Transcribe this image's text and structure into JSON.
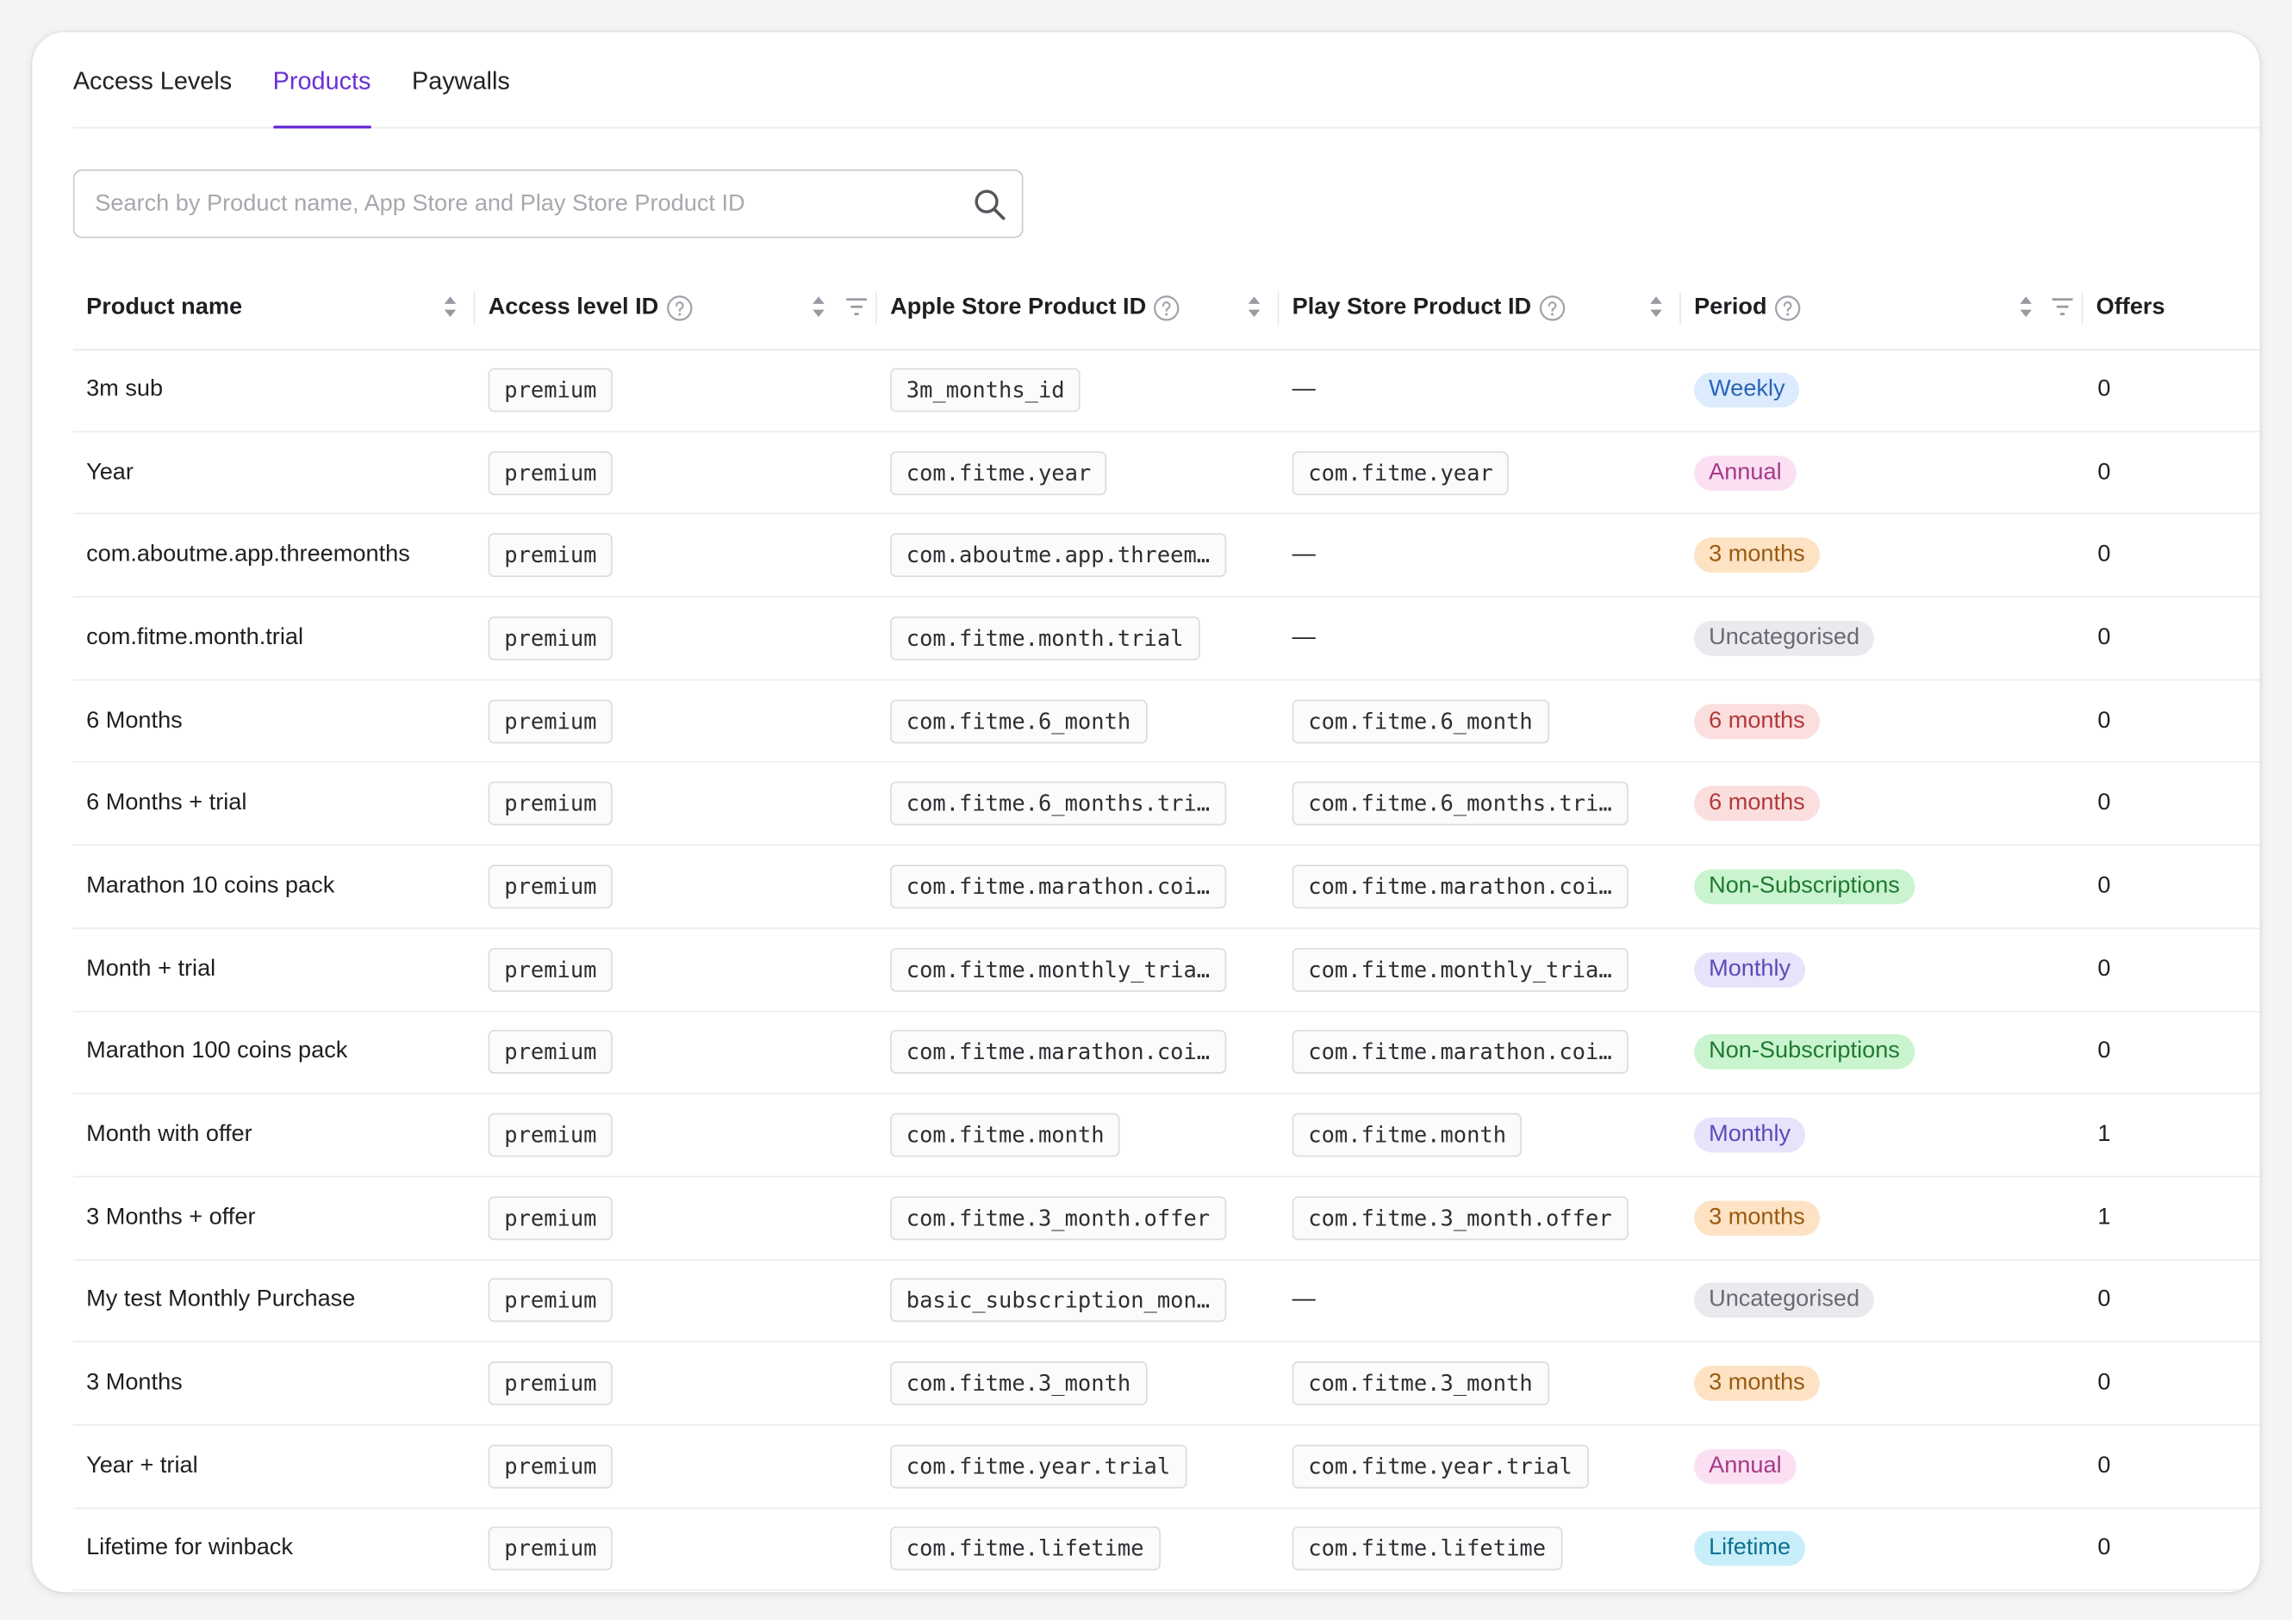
{
  "tabs": [
    {
      "label": "Access Levels",
      "active": false
    },
    {
      "label": "Products",
      "active": true
    },
    {
      "label": "Paywalls",
      "active": false
    }
  ],
  "search": {
    "placeholder": "Search by Product name, App Store and Play Store Product ID",
    "value": ""
  },
  "columns": {
    "product_name": "Product name",
    "access_level_id": "Access level ID",
    "apple_id": "Apple Store Product ID",
    "play_id": "Play Store Product ID",
    "period": "Period",
    "offers": "Offers"
  },
  "period_colors": {
    "Weekly": {
      "bg": "#dcebfd",
      "fg": "#2a64b8"
    },
    "Annual": {
      "bg": "#fbe0f3",
      "fg": "#a53a86"
    },
    "3 months": {
      "bg": "#fde2c4",
      "fg": "#9a5a12"
    },
    "Uncategorised": {
      "bg": "#e9e9ee",
      "fg": "#6a6a74"
    },
    "6 months": {
      "bg": "#fbdede",
      "fg": "#b23a3a"
    },
    "Non-Subscriptions": {
      "bg": "#c9f4cf",
      "fg": "#1e7a31"
    },
    "Monthly": {
      "bg": "#e6e3fb",
      "fg": "#5a4bb8"
    },
    "Lifetime": {
      "bg": "#c8eefa",
      "fg": "#11708f"
    }
  },
  "rows": [
    {
      "name": "3m sub",
      "access": "premium",
      "apple": "3m_months_id",
      "play": "—",
      "period": "Weekly",
      "offers": "0"
    },
    {
      "name": "Year",
      "access": "premium",
      "apple": "com.fitme.year",
      "play": "com.fitme.year",
      "period": "Annual",
      "offers": "0"
    },
    {
      "name": "com.aboutme.app.threemonths",
      "access": "premium",
      "apple": "com.aboutme.app.threem…",
      "play": "—",
      "period": "3 months",
      "offers": "0"
    },
    {
      "name": "com.fitme.month.trial",
      "access": "premium",
      "apple": "com.fitme.month.trial",
      "play": "—",
      "period": "Uncategorised",
      "offers": "0"
    },
    {
      "name": "6 Months",
      "access": "premium",
      "apple": "com.fitme.6_month",
      "play": "com.fitme.6_month",
      "period": "6 months",
      "offers": "0"
    },
    {
      "name": "6 Months + trial",
      "access": "premium",
      "apple": "com.fitme.6_months.tri…",
      "play": "com.fitme.6_months.tri…",
      "period": "6 months",
      "offers": "0"
    },
    {
      "name": "Marathon 10 coins pack",
      "access": "premium",
      "apple": "com.fitme.marathon.coi…",
      "play": "com.fitme.marathon.coi…",
      "period": "Non-Subscriptions",
      "offers": "0"
    },
    {
      "name": "Month + trial",
      "access": "premium",
      "apple": "com.fitme.monthly_tria…",
      "play": "com.fitme.monthly_tria…",
      "period": "Monthly",
      "offers": "0"
    },
    {
      "name": "Marathon 100 coins pack",
      "access": "premium",
      "apple": "com.fitme.marathon.coi…",
      "play": "com.fitme.marathon.coi…",
      "period": "Non-Subscriptions",
      "offers": "0"
    },
    {
      "name": "Month with offer",
      "access": "premium",
      "apple": "com.fitme.month",
      "play": "com.fitme.month",
      "period": "Monthly",
      "offers": "1"
    },
    {
      "name": "3 Months + offer",
      "access": "premium",
      "apple": "com.fitme.3_month.offer",
      "play": "com.fitme.3_month.offer",
      "period": "3 months",
      "offers": "1"
    },
    {
      "name": "My test Monthly Purchase",
      "access": "premium",
      "apple": "basic_subscription_mon…",
      "play": "—",
      "period": "Uncategorised",
      "offers": "0"
    },
    {
      "name": "3 Months",
      "access": "premium",
      "apple": "com.fitme.3_month",
      "play": "com.fitme.3_month",
      "period": "3 months",
      "offers": "0"
    },
    {
      "name": "Year + trial",
      "access": "premium",
      "apple": "com.fitme.year.trial",
      "play": "com.fitme.year.trial",
      "period": "Annual",
      "offers": "0"
    },
    {
      "name": "Lifetime for winback",
      "access": "premium",
      "apple": "com.fitme.lifetime",
      "play": "com.fitme.lifetime",
      "period": "Lifetime",
      "offers": "0"
    }
  ]
}
